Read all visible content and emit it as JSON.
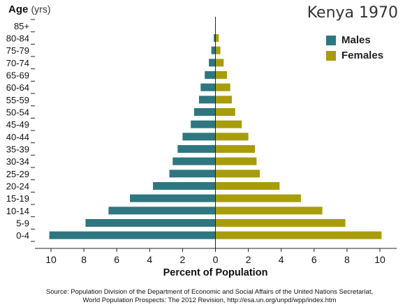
{
  "header": {
    "y_axis_title": "Age",
    "y_axis_unit": "(yrs)",
    "chart_title": "Kenya 1970"
  },
  "legend": [
    {
      "label": "Males",
      "color": "#2e7680"
    },
    {
      "label": "Females",
      "color": "#a89c0b"
    }
  ],
  "source": {
    "line1": "Source: Population Division of the Department of Economic and Social Affairs of the United Nations Secretariat,",
    "line2": "World Population Prospects: The 2012 Revision, http://esa.un.org/unpd/wpp/index.htm"
  },
  "chart_data": {
    "type": "bar",
    "orientation": "horizontal-diverging",
    "title": "Kenya 1970",
    "xlabel": "Percent of Population",
    "ylabel": "Age (yrs)",
    "xlim": [
      -11,
      11
    ],
    "xticks": [
      -10,
      -8,
      -6,
      -4,
      -2,
      0,
      2,
      4,
      6,
      8,
      10
    ],
    "xtick_labels": [
      "10",
      "8",
      "6",
      "4",
      "2",
      "0",
      "2",
      "4",
      "6",
      "8",
      "10"
    ],
    "categories": [
      "0-4",
      "5-9",
      "10-14",
      "15-19",
      "20-24",
      "25-29",
      "30-34",
      "35-39",
      "40-44",
      "45-49",
      "50-54",
      "55-59",
      "60-64",
      "65-69",
      "70-74",
      "75-79",
      "80-84",
      "85+"
    ],
    "series": [
      {
        "name": "Males",
        "color": "#2e7680",
        "values": [
          10.1,
          7.9,
          6.5,
          5.2,
          3.8,
          2.8,
          2.6,
          2.3,
          2.0,
          1.5,
          1.3,
          1.0,
          0.9,
          0.65,
          0.4,
          0.25,
          0.1,
          0.0
        ]
      },
      {
        "name": "Females",
        "color": "#a89c0b",
        "values": [
          10.1,
          7.9,
          6.5,
          5.2,
          3.9,
          2.7,
          2.5,
          2.4,
          2.0,
          1.6,
          1.2,
          1.0,
          0.9,
          0.7,
          0.5,
          0.3,
          0.2,
          0.0
        ]
      }
    ],
    "legend_position": "top-right",
    "grid": false
  }
}
